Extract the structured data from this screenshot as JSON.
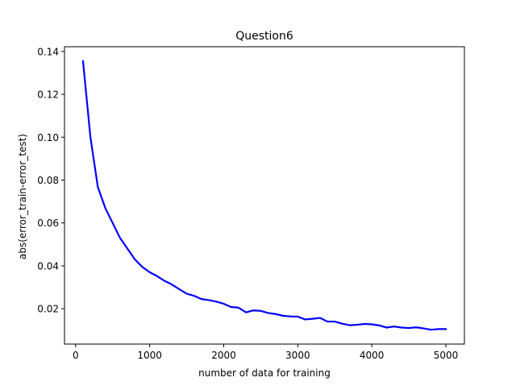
{
  "chart_data": {
    "type": "line",
    "title": "Question6",
    "xlabel": "number of data for training",
    "ylabel": "abs(error_train-error_test)",
    "xlim": [
      -150,
      5250
    ],
    "ylim": [
      0.0035,
      0.1422
    ],
    "xticks": [
      0,
      1000,
      2000,
      3000,
      4000,
      5000
    ],
    "xtick_labels": [
      "0",
      "1000",
      "2000",
      "3000",
      "4000",
      "5000"
    ],
    "yticks": [
      0.02,
      0.04,
      0.06,
      0.08,
      0.1,
      0.12,
      0.14
    ],
    "ytick_labels": [
      "0.02",
      "0.04",
      "0.06",
      "0.08",
      "0.10",
      "0.12",
      "0.14"
    ],
    "grid": false,
    "legend": "none",
    "series": [
      {
        "color": "#0000ff",
        "x": [
          100,
          200,
          300,
          400,
          500,
          600,
          700,
          800,
          900,
          1000,
          1100,
          1200,
          1300,
          1400,
          1500,
          1600,
          1700,
          1800,
          1900,
          2000,
          2100,
          2200,
          2300,
          2400,
          2500,
          2600,
          2700,
          2800,
          2900,
          3000,
          3100,
          3200,
          3300,
          3400,
          3500,
          3600,
          3700,
          3800,
          3900,
          4000,
          4100,
          4200,
          4300,
          4400,
          4500,
          4600,
          4700,
          4800,
          4900,
          5000
        ],
        "y": [
          0.1355,
          0.1,
          0.0768,
          0.067,
          0.06,
          0.053,
          0.048,
          0.043,
          0.0395,
          0.037,
          0.0352,
          0.033,
          0.0313,
          0.0291,
          0.027,
          0.026,
          0.0245,
          0.024,
          0.0233,
          0.0223,
          0.0208,
          0.0205,
          0.0183,
          0.0192,
          0.019,
          0.018,
          0.0175,
          0.0167,
          0.0164,
          0.0163,
          0.015,
          0.0153,
          0.0157,
          0.014,
          0.014,
          0.013,
          0.0123,
          0.0125,
          0.0129,
          0.0127,
          0.0122,
          0.0112,
          0.0117,
          0.0112,
          0.011,
          0.0113,
          0.0108,
          0.0102,
          0.0105,
          0.0105
        ]
      }
    ]
  }
}
